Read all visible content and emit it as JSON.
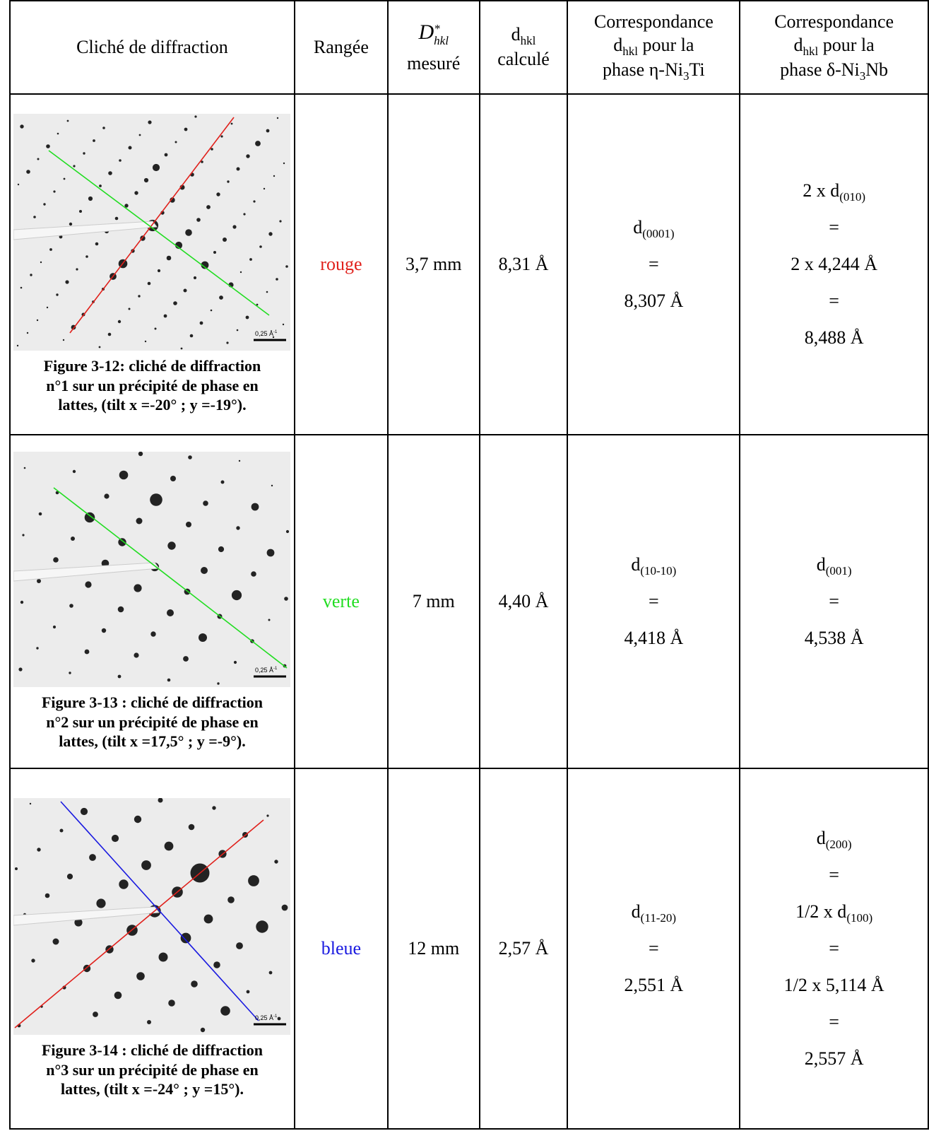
{
  "header": {
    "cliche": "Cliché de diffraction",
    "rangee": "Rangée",
    "D": {
      "symbol": "D",
      "sup": "*",
      "sub": "hkl",
      "line2": "mesuré"
    },
    "d": {
      "symbol": "d",
      "sub": "hkl",
      "line2": "calculé"
    },
    "eta": {
      "line1": "Correspondance",
      "line2_main": "d",
      "line2_sub": "hkl",
      "line2_rest": "pour la",
      "line3_pre": "phase η-Ni",
      "line3_sub": "3",
      "line3_post": "Ti"
    },
    "delta": {
      "line1": "Correspondance",
      "line2_main": "d",
      "line2_sub": "hkl",
      "line2_rest": "pour la",
      "line3_pre": "phase δ-Ni",
      "line3_sub": "3",
      "line3_post": "Nb"
    }
  },
  "rows": [
    {
      "caption": [
        "Figure 3-12: cliché de diffraction",
        "n°1 sur un précipité de phase en",
        "lattes, (tilt x =-20° ; y =-19°)."
      ],
      "scale": {
        "text": "0,25 Å",
        "sup": "-1"
      },
      "rangee": "rouge",
      "rangee_color": "#e0201b",
      "D": "3,7 mm",
      "d": "8,31 Å",
      "eta": [
        {
          "text": "d",
          "sub": "(0001)"
        },
        "=",
        "8,307 Å"
      ],
      "delta": [
        {
          "text": "2 x d",
          "sub": "(010)"
        },
        "=",
        "2 x 4,244 Å",
        "=",
        "8,488 Å"
      ]
    },
    {
      "caption": [
        "Figure 3-13 : cliché de diffraction",
        "n°2 sur un précipité de phase en",
        "lattes, (tilt x =17,5° ; y =-9°)."
      ],
      "scale": {
        "text": "0,25 Å",
        "sup": "-1"
      },
      "rangee": "verte",
      "rangee_color": "#22dd22",
      "D": "7 mm",
      "d": "4,40 Å",
      "eta": [
        {
          "text": "d",
          "sub": "(10-10)"
        },
        "=",
        "4,418 Å"
      ],
      "delta": [
        {
          "text": "d",
          "sub": "(001)"
        },
        "=",
        "4,538 Å"
      ]
    },
    {
      "caption": [
        "Figure 3-14 : cliché de diffraction",
        "n°3 sur un précipité de phase en",
        "lattes, (tilt x =-24° ; y =15°)."
      ],
      "scale": {
        "text": "0,25 Å",
        "sup": "-1"
      },
      "rangee": "bleue",
      "rangee_color": "#1a1ae0",
      "D": "12 mm",
      "d": "2,57 Å",
      "eta": [
        {
          "text": "d",
          "sub": "(11-20)"
        },
        "=",
        "2,551 Å"
      ],
      "delta": [
        {
          "text": "d",
          "sub": "(200)"
        },
        "=",
        {
          "text": "1/2 x d",
          "sub": "(100)"
        },
        "=",
        "1/2 x 5,114 Å",
        "=",
        "2,557 Å"
      ]
    }
  ]
}
